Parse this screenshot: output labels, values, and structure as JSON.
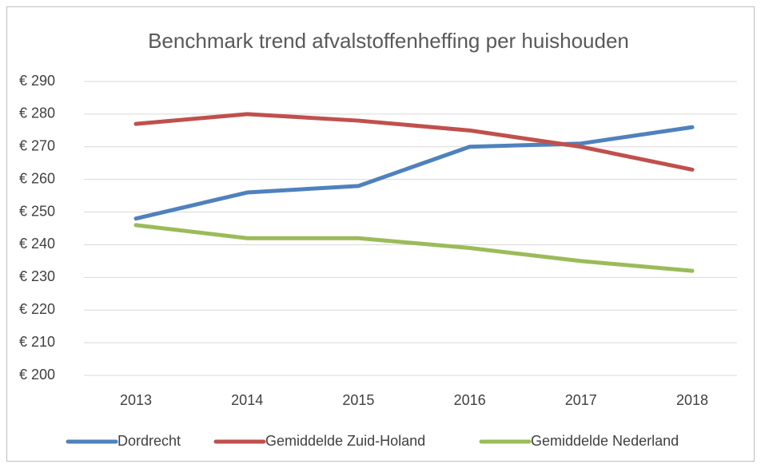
{
  "chart_data": {
    "type": "line",
    "title": "Benchmark trend afvalstoffenheffing per huishouden",
    "categories": [
      "2013",
      "2014",
      "2015",
      "2016",
      "2017",
      "2018"
    ],
    "series": [
      {
        "name": "Dordrecht",
        "color": "#4f81bd",
        "values": [
          248,
          256,
          258,
          270,
          271,
          276
        ]
      },
      {
        "name": "Gemiddelde Zuid-Holand",
        "color": "#c0504d",
        "values": [
          277,
          280,
          278,
          275,
          270,
          263
        ]
      },
      {
        "name": "Gemiddelde Nederland",
        "color": "#9bbb59",
        "values": [
          246,
          242,
          242,
          239,
          235,
          232
        ]
      }
    ],
    "ylim": [
      200,
      290
    ],
    "yticks": [
      {
        "value": 200,
        "label": "€ 200"
      },
      {
        "value": 210,
        "label": "€ 210"
      },
      {
        "value": 220,
        "label": "€ 220"
      },
      {
        "value": 230,
        "label": "€ 230"
      },
      {
        "value": 240,
        "label": "€ 240"
      },
      {
        "value": 250,
        "label": "€ 250"
      },
      {
        "value": 260,
        "label": "€ 260"
      },
      {
        "value": 270,
        "label": "€ 270"
      },
      {
        "value": 280,
        "label": "€ 280"
      },
      {
        "value": 290,
        "label": "€ 290"
      }
    ],
    "grid": true,
    "legend": "bottom"
  }
}
